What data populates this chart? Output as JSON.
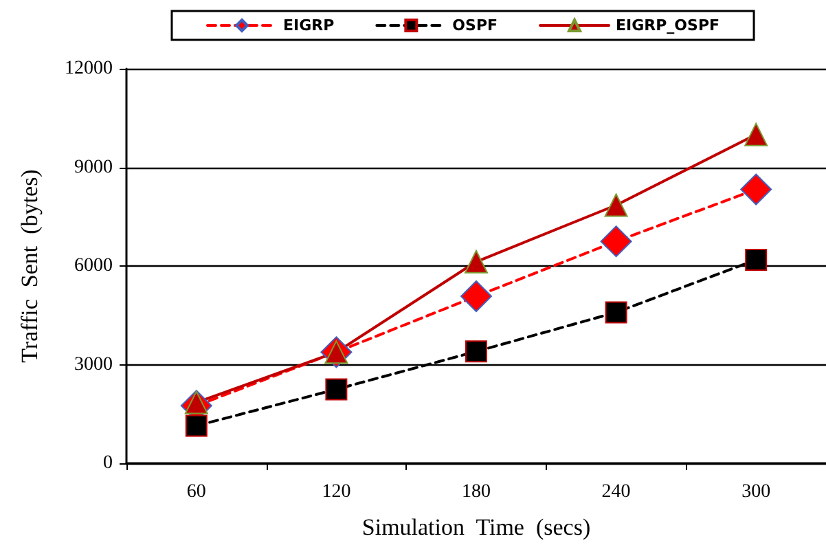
{
  "chart_data": {
    "type": "line",
    "xlabel": "Simulation  Time  (secs)",
    "ylabel": "Traffic  Sent  (bytes)",
    "categories": [
      "60",
      "120",
      "180",
      "240",
      "300"
    ],
    "series": [
      {
        "name": "EIGRP",
        "color": "#ff0000",
        "values": [
          1750,
          3380,
          5080,
          6750,
          8330
        ],
        "marker": "diamond",
        "line_style": "dashed"
      },
      {
        "name": "OSPF",
        "color": "#000000",
        "values": [
          1140,
          2250,
          3400,
          4590,
          6190
        ],
        "marker": "square",
        "line_style": "dashed"
      },
      {
        "name": "EIGRP_OSPF",
        "color": "#c00000",
        "values": [
          1850,
          3380,
          6130,
          7850,
          10000
        ],
        "marker": "triangle",
        "line_style": "solid"
      }
    ],
    "ylim": [
      0,
      12000
    ],
    "yticks": [
      0,
      3000,
      6000,
      9000,
      12000
    ],
    "grid": "y",
    "legend": "top"
  }
}
